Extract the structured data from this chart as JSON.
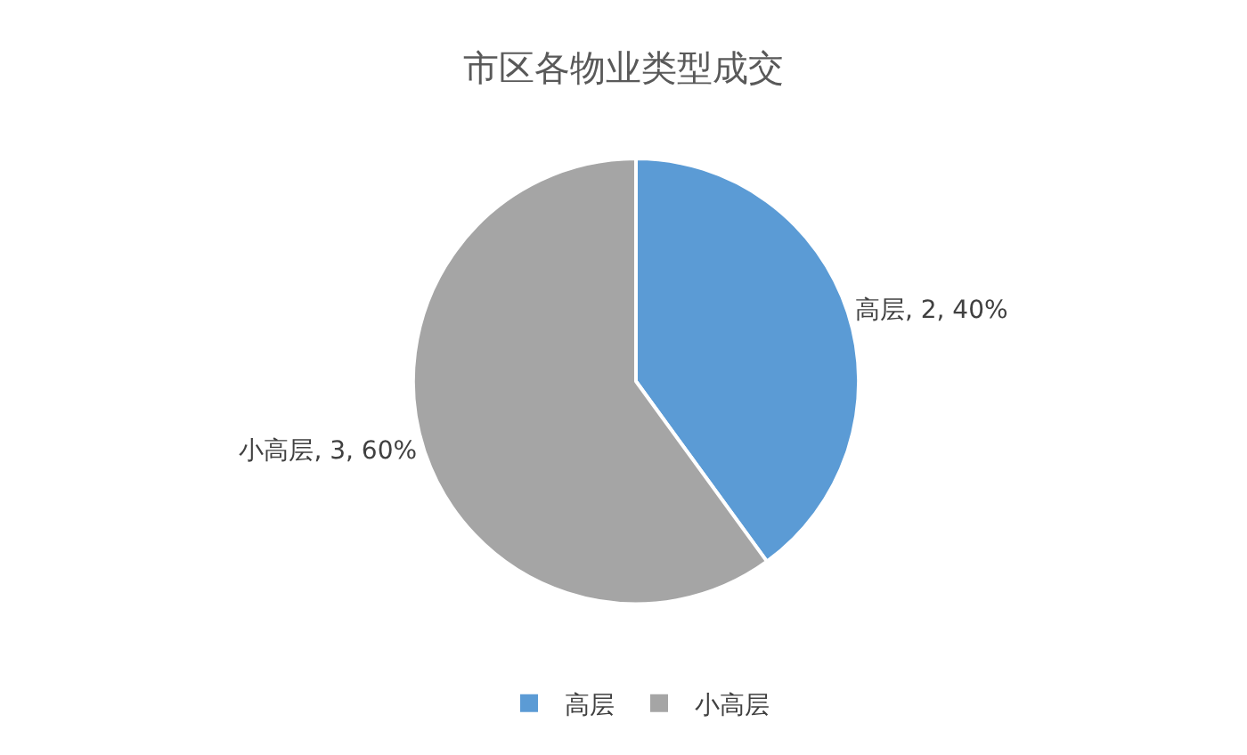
{
  "chart_data": {
    "type": "pie",
    "title": "市区各物业类型成交",
    "categories": [
      "高层",
      "小高层"
    ],
    "values": [
      2,
      3
    ],
    "colors": [
      "#5b9bd5",
      "#a5a5a5"
    ],
    "value_labels": [
      "高层, 2, 40%",
      "小高层, 3, 60%"
    ],
    "legend": "bottom"
  }
}
